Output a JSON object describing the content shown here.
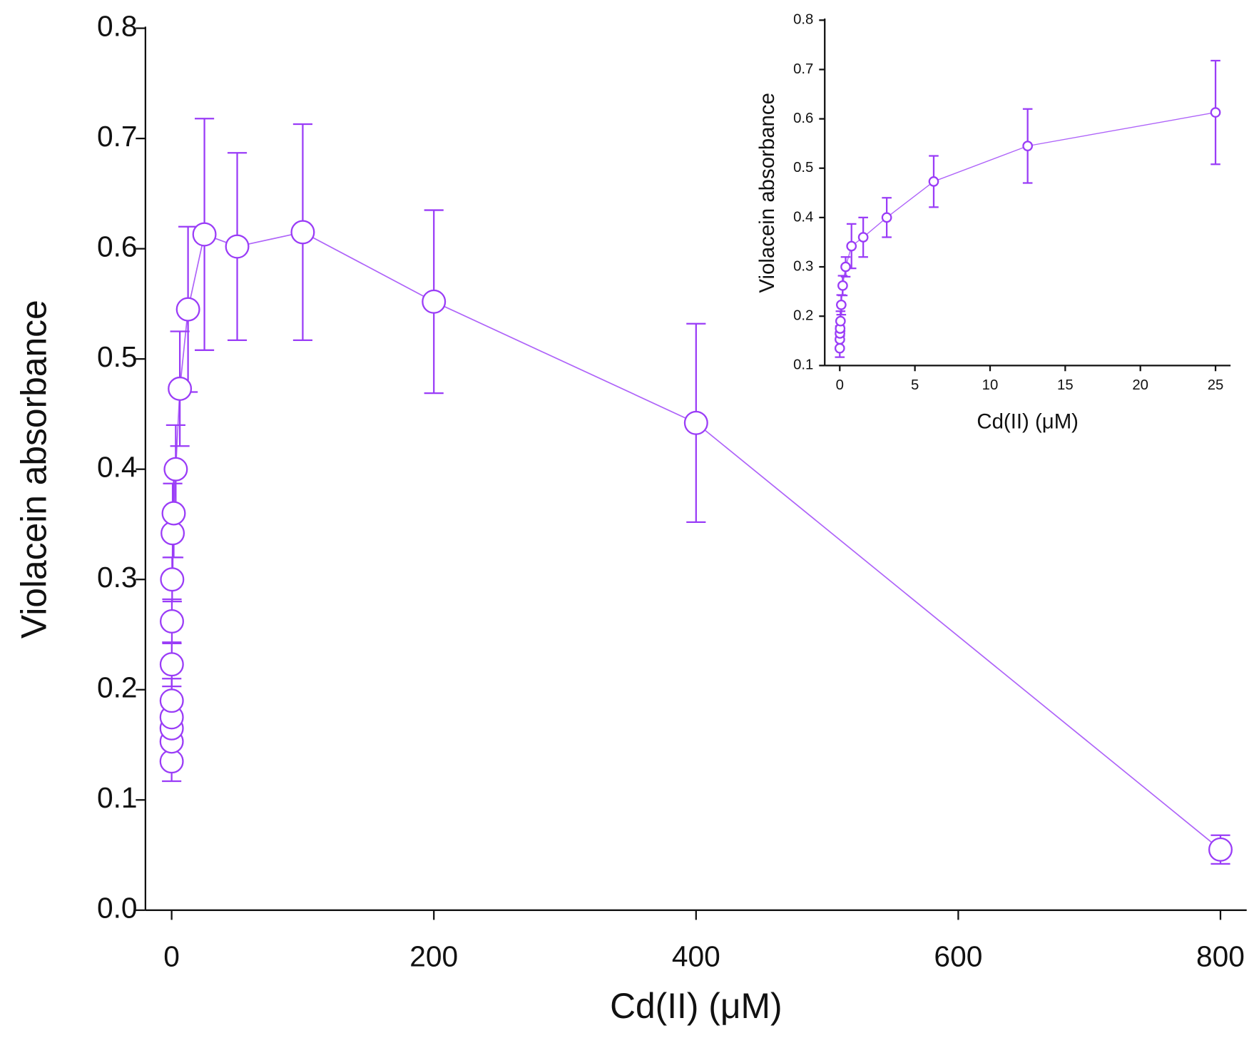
{
  "chart_data": [
    {
      "type": "line",
      "x_label": "Cd(II) (μM)",
      "y_label": "Violacein absorbance",
      "x": [
        0,
        0.006,
        0.012,
        0.024,
        0.049,
        0.098,
        0.195,
        0.39,
        0.78,
        1.56,
        3.125,
        6.25,
        12.5,
        25,
        50,
        100,
        200,
        400,
        800
      ],
      "values": [
        0.135,
        0.153,
        0.165,
        0.175,
        0.19,
        0.223,
        0.262,
        0.3,
        0.342,
        0.36,
        0.4,
        0.473,
        0.545,
        0.613,
        0.602,
        0.615,
        0.552,
        0.442,
        0.055
      ],
      "errors": [
        0.018,
        0.015,
        0.015,
        0.015,
        0.02,
        0.02,
        0.02,
        0.02,
        0.045,
        0.04,
        0.04,
        0.052,
        0.075,
        0.105,
        0.085,
        0.098,
        0.083,
        0.09,
        0.013
      ],
      "color": "#9a3cf7",
      "xlim": [
        -20,
        820
      ],
      "xticks": [
        0,
        200,
        400,
        600,
        800
      ],
      "ylim": [
        0,
        0.8
      ],
      "yticks": [
        {
          "value": 0,
          "label": "0.0"
        },
        0.1,
        0.2,
        0.3,
        0.4,
        0.5,
        0.6,
        0.7,
        0.8
      ]
    },
    {
      "type": "line",
      "x_label": "Cd(II) (μM)",
      "y_label": "Violacein absorbance",
      "x": [
        0,
        0.006,
        0.012,
        0.024,
        0.049,
        0.098,
        0.195,
        0.39,
        0.78,
        1.56,
        3.125,
        6.25,
        12.5,
        25
      ],
      "values": [
        0.135,
        0.153,
        0.165,
        0.175,
        0.19,
        0.223,
        0.262,
        0.3,
        0.342,
        0.36,
        0.4,
        0.473,
        0.545,
        0.613
      ],
      "errors": [
        0.018,
        0.015,
        0.015,
        0.015,
        0.02,
        0.02,
        0.02,
        0.02,
        0.045,
        0.04,
        0.04,
        0.052,
        0.075,
        0.105
      ],
      "color": "#9a3cf7",
      "xlim": [
        -1,
        26
      ],
      "xticks": [
        0,
        5,
        10,
        15,
        20,
        25
      ],
      "ylim": [
        0.1,
        0.8
      ],
      "yticks": [
        0.1,
        0.2,
        0.3,
        0.4,
        0.5,
        0.6,
        0.7,
        0.8
      ]
    }
  ]
}
